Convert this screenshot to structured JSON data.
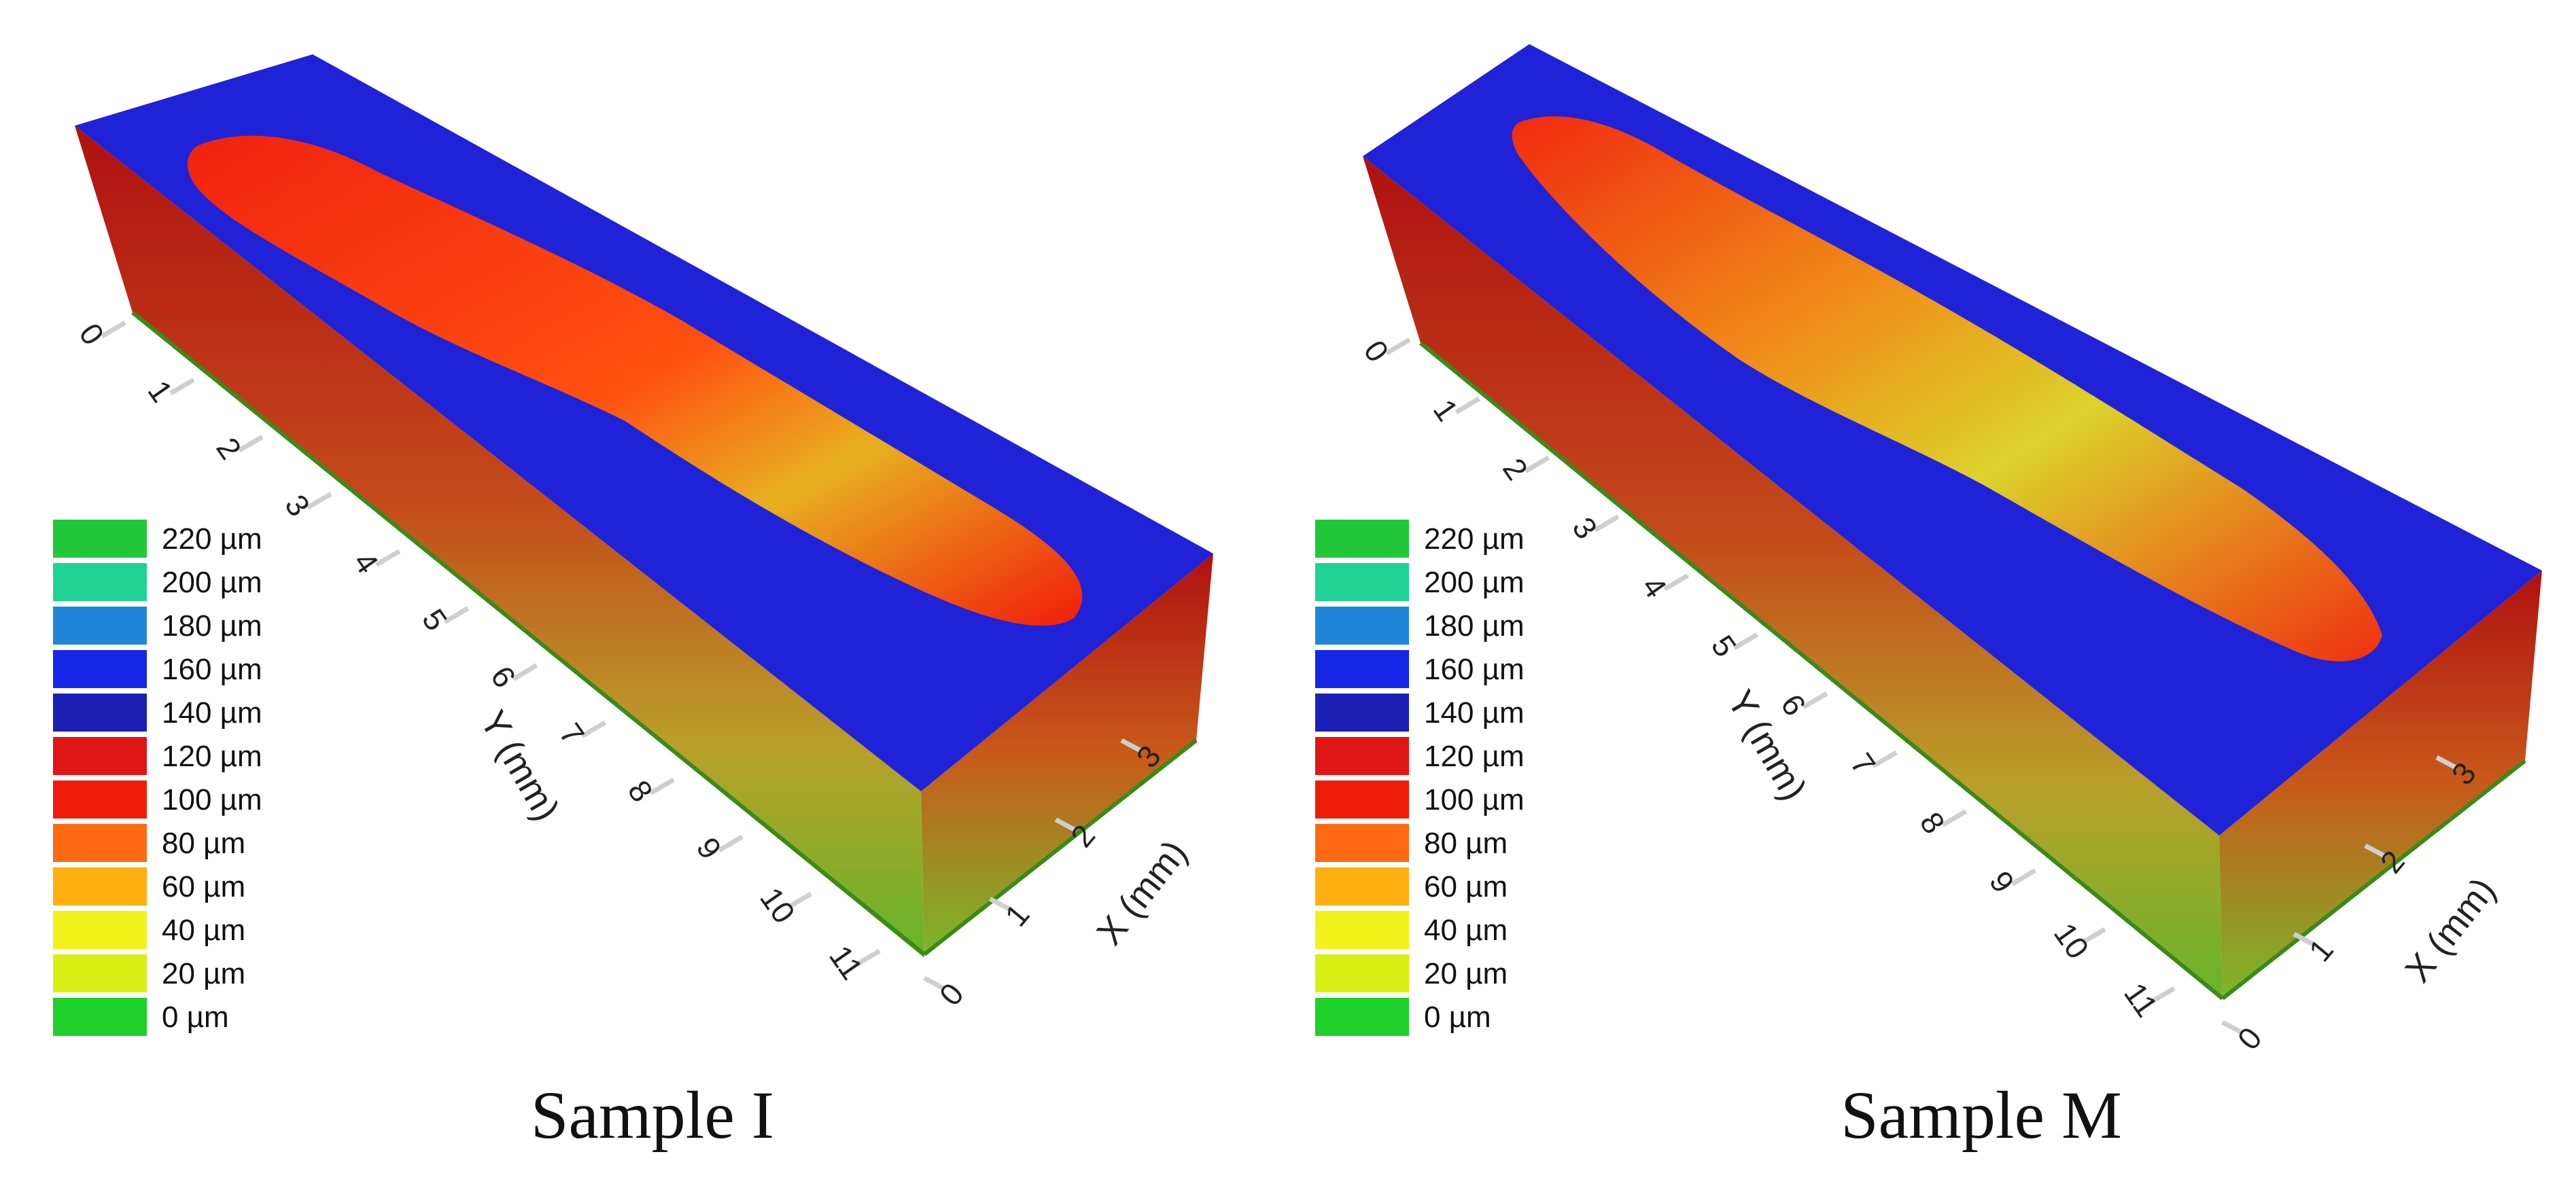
{
  "colorscale": {
    "unit_labels": [
      "220 µm",
      "200 µm",
      "180 µm",
      "160 µm",
      "140 µm",
      "120 µm",
      "100 µm",
      "80 µm",
      "60 µm",
      "40 µm",
      "20 µm",
      "0 µm"
    ],
    "colors": [
      "#22c83a",
      "#1fd394",
      "#1f86d9",
      "#1626e8",
      "#1c20b4",
      "#e01515",
      "#f21c0a",
      "#ff6a10",
      "#ffb010",
      "#f2f21a",
      "#d7ef12",
      "#1fcf2a"
    ]
  },
  "chart_data": [
    {
      "type": "surface3d",
      "caption": "Sample I",
      "y_axis": {
        "label": "Y (mm)",
        "ticks": [
          "0",
          "1",
          "2",
          "3",
          "4",
          "5",
          "6",
          "7",
          "8",
          "9",
          "10",
          "11"
        ]
      },
      "x_axis": {
        "label": "X (mm)",
        "ticks": [
          "0",
          "1",
          "2",
          "3"
        ]
      }
    },
    {
      "type": "surface3d",
      "caption": "Sample M",
      "y_axis": {
        "label": "Y (mm)",
        "ticks": [
          "0",
          "1",
          "2",
          "3",
          "4",
          "5",
          "6",
          "7",
          "8",
          "9",
          "10",
          "11"
        ]
      },
      "x_axis": {
        "label": "X (mm)",
        "ticks": [
          "0",
          "1",
          "2",
          "3"
        ]
      }
    }
  ]
}
